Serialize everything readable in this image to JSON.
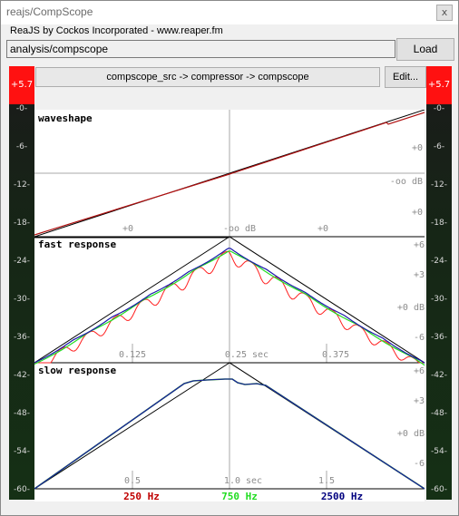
{
  "window": {
    "title": "reajs/CompScope",
    "close_label": "x"
  },
  "fx": {
    "description": "ReaJS by Cockos Incorporated - www.reaper.fm",
    "path": "analysis/compscope",
    "load_label": "Load"
  },
  "chain": {
    "label": "compscope_src -> compressor -> compscope",
    "edit_label": "Edit..."
  },
  "meters": {
    "peak_left": "+5.7",
    "peak_right": "+5.7",
    "peak_color": "#ff1111",
    "ticks": [
      "-0-",
      "-6-",
      "-12-",
      "-18-",
      "-24-",
      "-30-",
      "-36-",
      "-42-",
      "-48-",
      "-54-",
      "-60-"
    ]
  },
  "panels": {
    "waveshape": {
      "title": "waveshape",
      "right_labels": [
        "+0",
        "-oo dB",
        "+0"
      ],
      "bottom_labels": [
        "+0",
        "-oo dB",
        "+0"
      ]
    },
    "fast": {
      "title": "fast response",
      "right_labels": [
        "+6",
        "+3",
        "+0 dB",
        "-6"
      ],
      "bottom_labels": [
        "0.125",
        "0.25 sec",
        "0.375"
      ]
    },
    "slow": {
      "title": "slow response",
      "right_labels": [
        "+6",
        "+3",
        "+0 dB",
        "-6"
      ],
      "bottom_labels": [
        "0.5",
        "1.0 sec",
        "1.5"
      ]
    }
  },
  "legend": [
    {
      "label": "250 Hz",
      "color": "#c00000"
    },
    {
      "label": "750 Hz",
      "color": "#22dd22"
    },
    {
      "label": "2500 Hz",
      "color": "#00007f"
    }
  ],
  "colors": {
    "red": "#ff2020",
    "green": "#22dd22",
    "blue": "#1a1aaa",
    "dark_red": "#8b0000",
    "grid": "#a8a8a8",
    "label_gray": "#8c8c8c"
  }
}
